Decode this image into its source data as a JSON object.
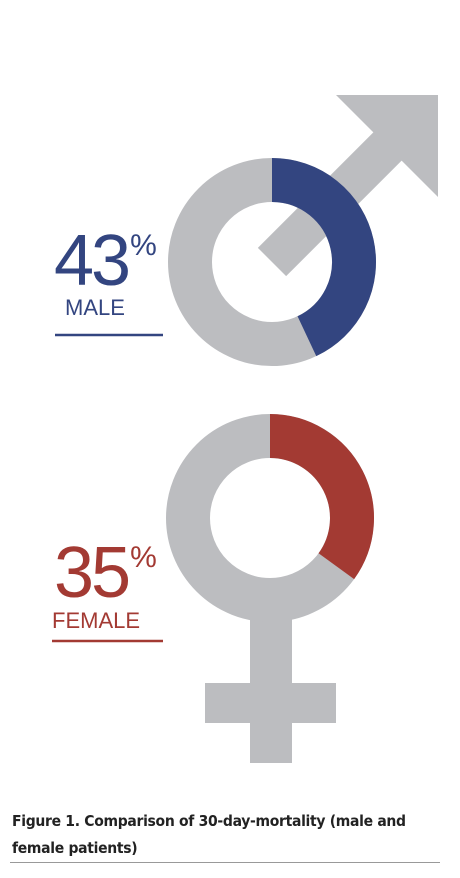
{
  "chart_data": [
    {
      "type": "donut",
      "label": "MALE",
      "values": [
        43
      ],
      "value_labels": [
        "43%"
      ],
      "color": "#334580"
    },
    {
      "type": "donut",
      "label": "FEMALE",
      "values": [
        35
      ],
      "value_labels": [
        "35%"
      ],
      "color": "#a33a33"
    }
  ],
  "caption": "Figure 1.  Comparison of 30-day-mortality  (male and female patients)"
}
